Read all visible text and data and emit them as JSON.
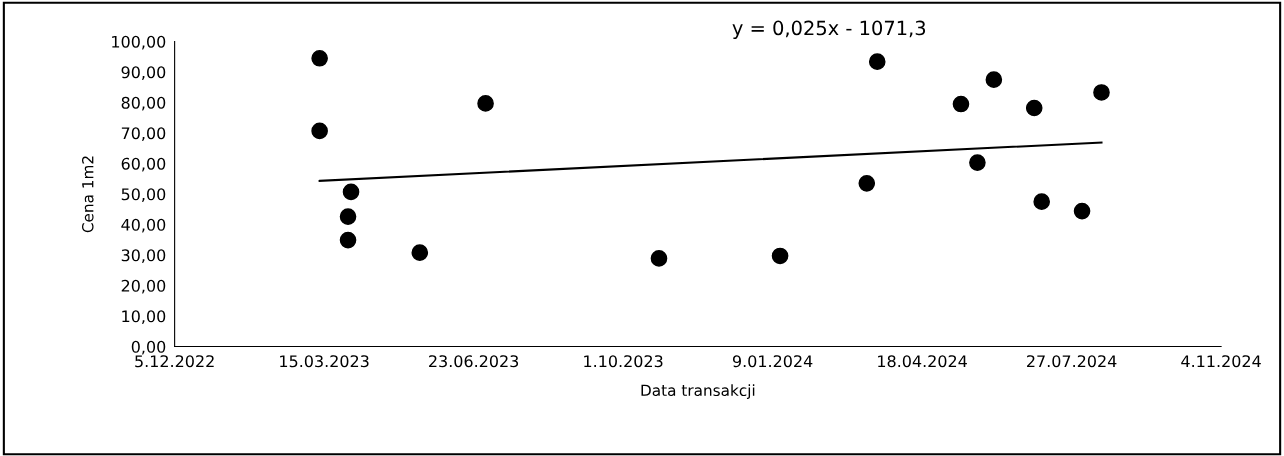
{
  "chart_data": {
    "type": "scatter",
    "xlabel": "Data transakcji",
    "ylabel": "Cena 1m2",
    "annotations": [
      "y = 0,025x - 1071,3"
    ],
    "series": [
      {
        "color": "#000000",
        "marker": "circle",
        "x": [
          "2023-03-12",
          "2023-03-12",
          "2023-04-02",
          "2023-03-31",
          "2023-03-31",
          "2023-05-18",
          "2023-07-01",
          "2023-10-25",
          "2024-01-14",
          "2024-03-19",
          "2024-03-12",
          "2024-05-14",
          "2024-06-05",
          "2024-05-25",
          "2024-07-02",
          "2024-07-07",
          "2024-08-03",
          "2024-08-16"
        ],
        "values": [
          94.5,
          70.7,
          50.7,
          42.6,
          34.9,
          30.8,
          79.7,
          28.9,
          29.7,
          93.4,
          53.5,
          79.5,
          87.5,
          60.3,
          78.2,
          47.5,
          44.4,
          83.3
        ]
      },
      {
        "type": "line",
        "color": "#000000",
        "marker": "none",
        "line_style": "solid",
        "x": [
          "2023-03-12",
          "2024-08-16"
        ],
        "values": [
          54.3,
          66.9
        ]
      }
    ],
    "xlim": [
      "2022-12-05",
      "2024-11-04"
    ],
    "xticks": [
      {
        "value": "2022-12-05",
        "label": "5.12.2022"
      },
      {
        "value": "2023-03-15",
        "label": "15.03.2023"
      },
      {
        "value": "2023-06-23",
        "label": "23.06.2023"
      },
      {
        "value": "2023-10-01",
        "label": "1.10.2023"
      },
      {
        "value": "2024-01-09",
        "label": "9.01.2024"
      },
      {
        "value": "2024-04-18",
        "label": "18.04.2024"
      },
      {
        "value": "2024-07-27",
        "label": "27.07.2024"
      },
      {
        "value": "2024-11-04",
        "label": "4.11.2024"
      }
    ],
    "ylim": [
      0,
      100
    ],
    "yticks": [
      {
        "value": 0,
        "label": "0,00"
      },
      {
        "value": 10,
        "label": "10,00"
      },
      {
        "value": 20,
        "label": "20,00"
      },
      {
        "value": 30,
        "label": "30,00"
      },
      {
        "value": 40,
        "label": "40,00"
      },
      {
        "value": 50,
        "label": "50,00"
      },
      {
        "value": 60,
        "label": "60,00"
      },
      {
        "value": 70,
        "label": "70,00"
      },
      {
        "value": 80,
        "label": "80,00"
      },
      {
        "value": 90,
        "label": "90,00"
      },
      {
        "value": 100,
        "label": "100,00"
      }
    ],
    "grid": false
  }
}
